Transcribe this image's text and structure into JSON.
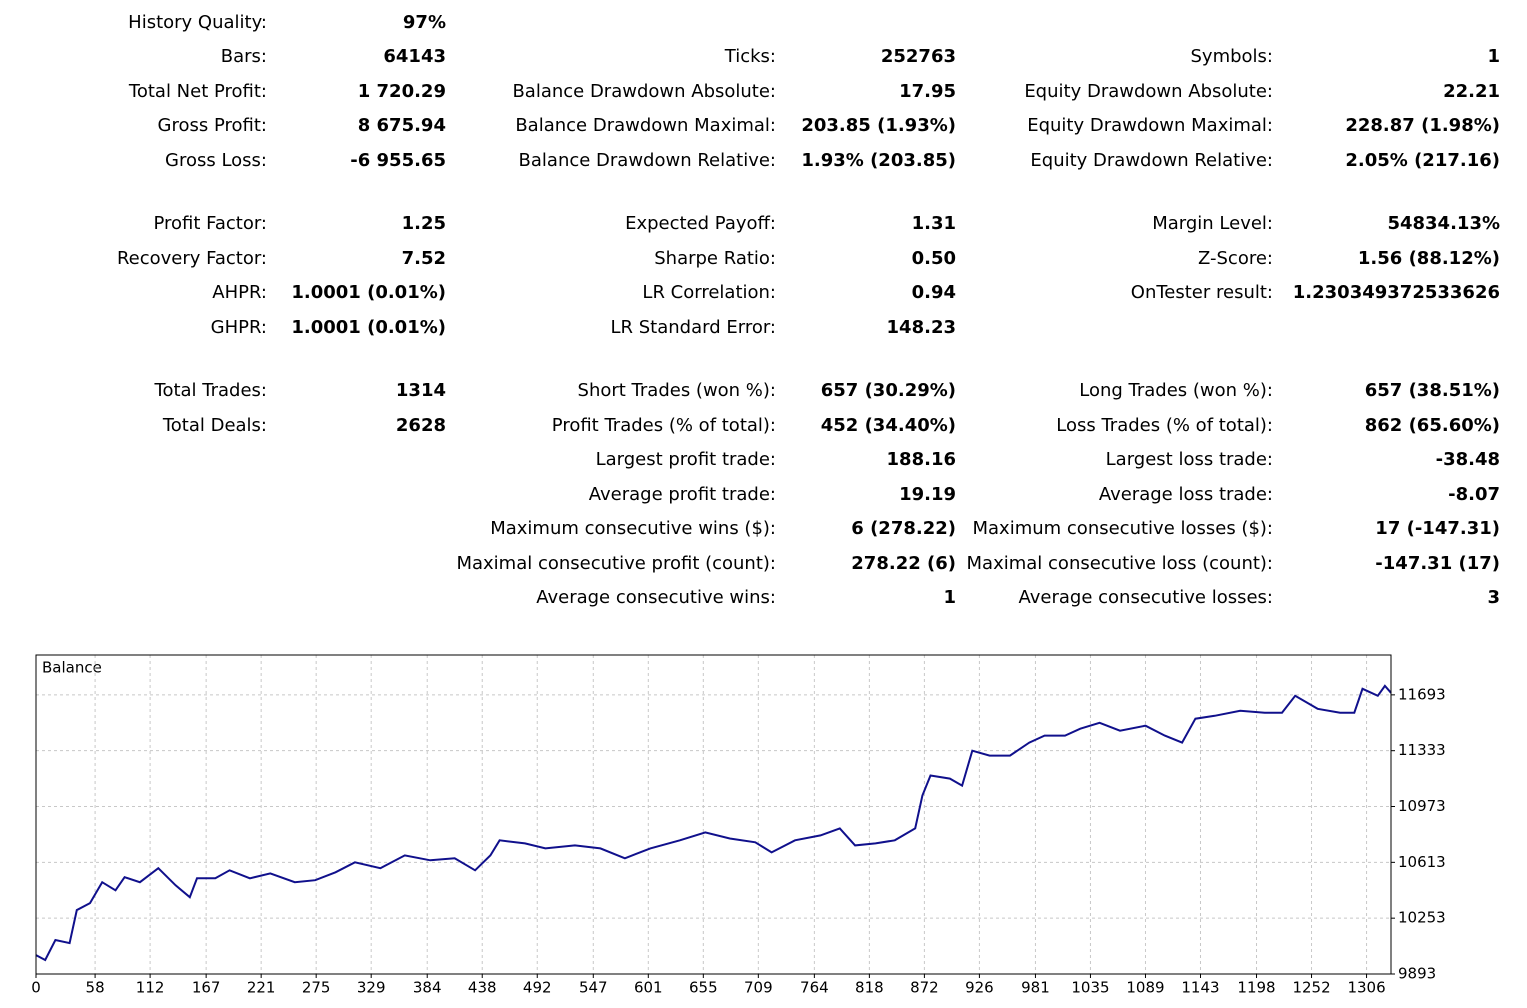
{
  "report": {
    "col1": [
      {
        "label": "History Quality:",
        "value": "97%"
      },
      {
        "label": "Bars:",
        "value": "64143"
      },
      {
        "label": "Total Net Profit:",
        "value": "1 720.29"
      },
      {
        "label": "Gross Profit:",
        "value": "8 675.94"
      },
      {
        "label": "Gross Loss:",
        "value": "-6 955.65"
      },
      {
        "label": "Profit Factor:",
        "value": "1.25"
      },
      {
        "label": "Recovery Factor:",
        "value": "7.52"
      },
      {
        "label": "AHPR:",
        "value": "1.0001 (0.01%)"
      },
      {
        "label": "GHPR:",
        "value": "1.0001 (0.01%)"
      },
      {
        "label": "Total Trades:",
        "value": "1314"
      },
      {
        "label": "Total Deals:",
        "value": "2628"
      }
    ],
    "col2": [
      {
        "label": "Ticks:",
        "value": "252763"
      },
      {
        "label": "Balance Drawdown Absolute:",
        "value": "17.95"
      },
      {
        "label": "Balance Drawdown Maximal:",
        "value": "203.85 (1.93%)"
      },
      {
        "label": "Balance Drawdown Relative:",
        "value": "1.93% (203.85)"
      },
      {
        "label": "Expected Payoff:",
        "value": "1.31"
      },
      {
        "label": "Sharpe Ratio:",
        "value": "0.50"
      },
      {
        "label": "LR Correlation:",
        "value": "0.94"
      },
      {
        "label": "LR Standard Error:",
        "value": "148.23"
      },
      {
        "label": "Short Trades (won %):",
        "value": "657 (30.29%)"
      },
      {
        "label": "Profit Trades (% of total):",
        "value": "452 (34.40%)"
      },
      {
        "label": "Largest profit trade:",
        "value": "188.16"
      },
      {
        "label": "Average profit trade:",
        "value": "19.19"
      },
      {
        "label": "Maximum consecutive wins ($):",
        "value": "6 (278.22)"
      },
      {
        "label": "Maximal consecutive profit (count):",
        "value": "278.22 (6)"
      },
      {
        "label": "Average consecutive wins:",
        "value": "1"
      }
    ],
    "col3": [
      {
        "label": "Symbols:",
        "value": "1"
      },
      {
        "label": "Equity Drawdown Absolute:",
        "value": "22.21"
      },
      {
        "label": "Equity Drawdown Maximal:",
        "value": "228.87 (1.98%)"
      },
      {
        "label": "Equity Drawdown Relative:",
        "value": "2.05% (217.16)"
      },
      {
        "label": "Margin Level:",
        "value": "54834.13%"
      },
      {
        "label": "Z-Score:",
        "value": "1.56 (88.12%)"
      },
      {
        "label": "OnTester result:",
        "value": "1.230349372533626"
      },
      {
        "label": "Long Trades (won %):",
        "value": "657 (38.51%)"
      },
      {
        "label": "Loss Trades (% of total):",
        "value": "862 (65.60%)"
      },
      {
        "label": "Largest loss trade:",
        "value": "-38.48"
      },
      {
        "label": "Average loss trade:",
        "value": "-8.07"
      },
      {
        "label": "Maximum consecutive losses ($):",
        "value": "17 (-147.31)"
      },
      {
        "label": "Maximal consecutive loss (count):",
        "value": "-147.31 (17)"
      },
      {
        "label": "Average consecutive losses:",
        "value": "3"
      }
    ]
  },
  "chart_data": {
    "type": "line",
    "title": "Balance",
    "color": "#10108c",
    "x": [
      0,
      9,
      19,
      33,
      40,
      53,
      65,
      78,
      87,
      102,
      120,
      137,
      151,
      158,
      176,
      190,
      210,
      230,
      254,
      274,
      294,
      313,
      338,
      362,
      387,
      411,
      431,
      446,
      455,
      480,
      500,
      529,
      554,
      578,
      603,
      632,
      657,
      681,
      706,
      722,
      745,
      770,
      789,
      804,
      824,
      843,
      863,
      870,
      878,
      897,
      909,
      919,
      936,
      956,
      975,
      990,
      1010,
      1025,
      1044,
      1064,
      1089,
      1108,
      1125,
      1138,
      1157,
      1182,
      1206,
      1223,
      1236,
      1258,
      1280,
      1294,
      1302,
      1317,
      1324,
      1330
    ],
    "values": [
      10015,
      9983,
      10112,
      10092,
      10305,
      10350,
      10485,
      10433,
      10517,
      10485,
      10575,
      10465,
      10388,
      10510,
      10510,
      10562,
      10510,
      10542,
      10485,
      10498,
      10549,
      10613,
      10575,
      10658,
      10626,
      10639,
      10562,
      10658,
      10755,
      10735,
      10703,
      10722,
      10703,
      10639,
      10703,
      10755,
      10806,
      10767,
      10742,
      10677,
      10755,
      10787,
      10832,
      10722,
      10735,
      10755,
      10832,
      11044,
      11173,
      11153,
      11108,
      11333,
      11301,
      11301,
      11385,
      11430,
      11430,
      11475,
      11513,
      11462,
      11494,
      11430,
      11385,
      11539,
      11558,
      11590,
      11578,
      11578,
      11687,
      11603,
      11578,
      11578,
      11732,
      11687,
      11751,
      11706
    ],
    "xlim": [
      0,
      1330
    ],
    "ylim": [
      9893,
      11950
    ],
    "xticks": [
      0,
      58,
      112,
      167,
      221,
      275,
      329,
      384,
      438,
      492,
      547,
      601,
      655,
      709,
      764,
      818,
      872,
      926,
      981,
      1035,
      1089,
      1143,
      1198,
      1252,
      1306
    ],
    "yticks": [
      9893,
      10253,
      10613,
      10973,
      11333,
      11693
    ],
    "grid": true
  }
}
